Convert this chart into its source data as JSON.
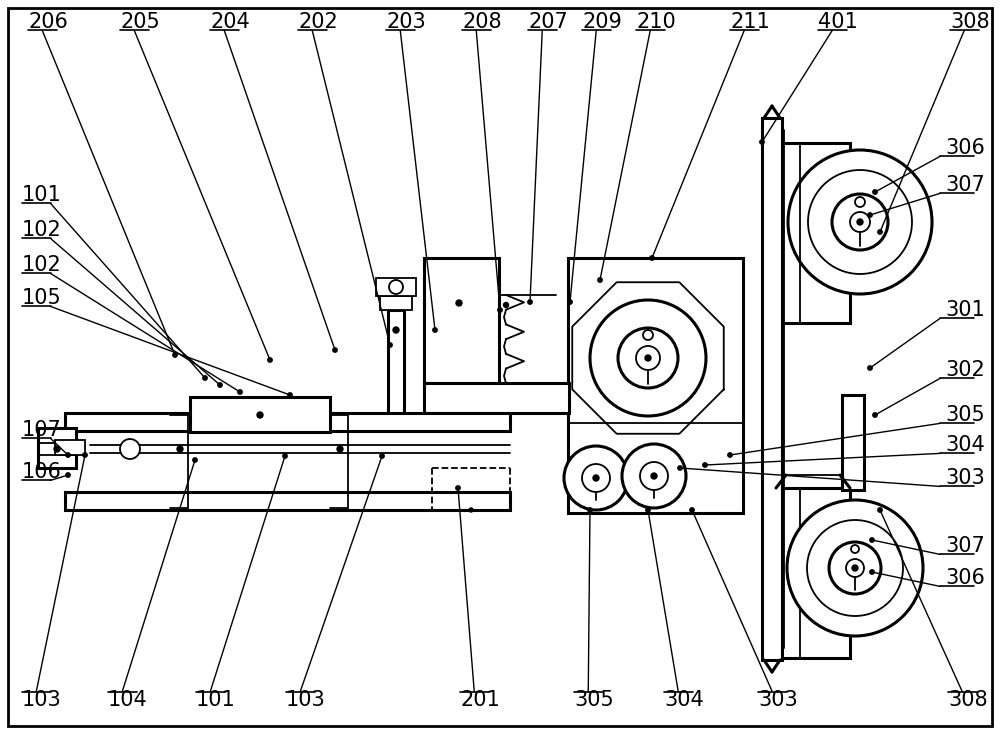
{
  "bg_color": "#ffffff",
  "lc": "#000000",
  "lw": 1.3,
  "tlw": 2.2,
  "fig_w": 10.0,
  "fig_h": 7.34,
  "top_labels": [
    [
      "206",
      28,
      22,
      175,
      355
    ],
    [
      "205",
      120,
      22,
      270,
      360
    ],
    [
      "204",
      210,
      22,
      335,
      350
    ],
    [
      "202",
      298,
      22,
      390,
      345
    ],
    [
      "203",
      386,
      22,
      435,
      330
    ],
    [
      "208",
      462,
      22,
      500,
      310
    ],
    [
      "207",
      528,
      22,
      530,
      302
    ],
    [
      "209",
      582,
      22,
      570,
      302
    ],
    [
      "210",
      636,
      22,
      600,
      280
    ],
    [
      "211",
      730,
      22,
      652,
      258
    ],
    [
      "401",
      818,
      22,
      762,
      142
    ],
    [
      "308",
      950,
      22,
      880,
      232
    ]
  ],
  "left_labels": [
    [
      "101",
      22,
      195,
      205,
      378
    ],
    [
      "102",
      22,
      230,
      220,
      385
    ],
    [
      "102",
      22,
      265,
      240,
      392
    ],
    [
      "105",
      22,
      298,
      290,
      395
    ]
  ],
  "side_labels_107_106": [
    [
      "107",
      22,
      430,
      68,
      455
    ],
    [
      "106",
      22,
      472,
      68,
      475
    ]
  ],
  "bot_labels": [
    [
      "103",
      22,
      700,
      85,
      455
    ],
    [
      "104",
      108,
      700,
      195,
      460
    ],
    [
      "101",
      196,
      700,
      285,
      456
    ],
    [
      "103",
      286,
      700,
      382,
      456
    ],
    [
      "201",
      460,
      700,
      458,
      488
    ],
    [
      "305",
      574,
      700,
      590,
      510
    ],
    [
      "304",
      664,
      700,
      648,
      510
    ],
    [
      "303",
      758,
      700,
      692,
      510
    ],
    [
      "308",
      948,
      700,
      880,
      510
    ]
  ],
  "right_labels": [
    [
      "306",
      940,
      148,
      875,
      192
    ],
    [
      "307",
      940,
      185,
      870,
      215
    ],
    [
      "301",
      940,
      310,
      870,
      368
    ],
    [
      "302",
      940,
      370,
      875,
      415
    ],
    [
      "305",
      940,
      415,
      730,
      455
    ],
    [
      "304",
      940,
      445,
      705,
      465
    ],
    [
      "303",
      940,
      478,
      680,
      468
    ],
    [
      "307",
      940,
      546,
      872,
      540
    ],
    [
      "306",
      940,
      578,
      872,
      572
    ]
  ]
}
